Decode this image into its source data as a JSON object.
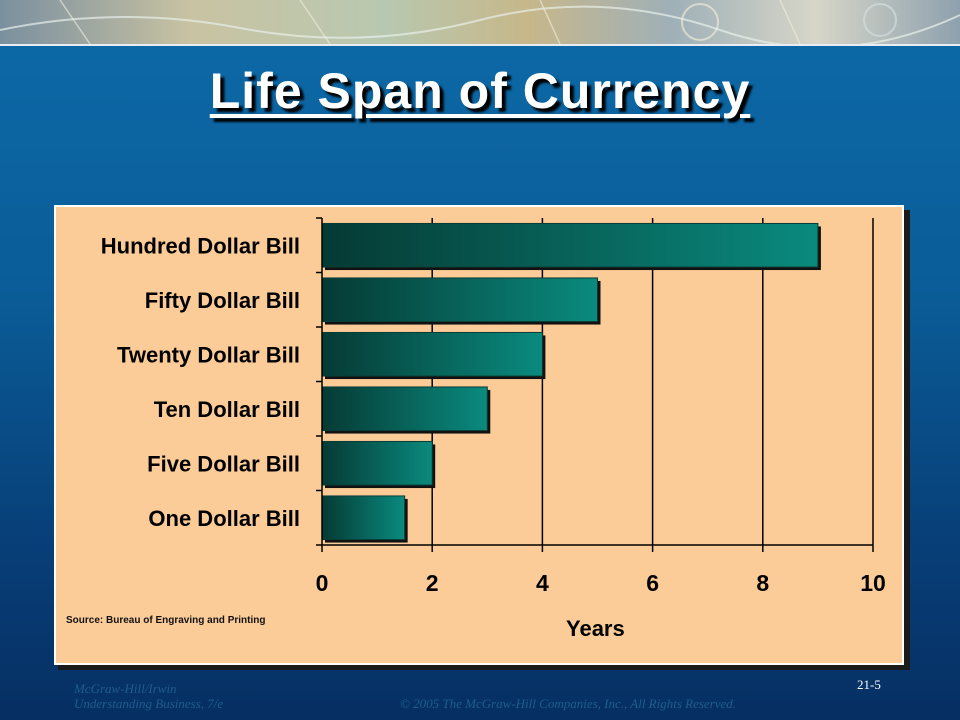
{
  "slide": {
    "title": "Life Span of Currency",
    "footer_publisher": "McGraw-Hill/Irwin",
    "footer_book": "Understanding Business, 7/e",
    "footer_copyright": "© 2005 The McGraw-Hill Companies, Inc., All Rights Reserved.",
    "slide_number": "21-5"
  },
  "chart_data": {
    "type": "bar",
    "orientation": "horizontal",
    "categories": [
      "Hundred Dollar Bill",
      "Fifty Dollar Bill",
      "Twenty Dollar Bill",
      "Ten Dollar Bill",
      "Five Dollar Bill",
      "One Dollar Bill"
    ],
    "values": [
      9,
      5,
      4,
      3,
      2,
      1.5
    ],
    "xlabel": "Years",
    "xlim": [
      0,
      10
    ],
    "xticks": [
      "0",
      "2",
      "4",
      "6",
      "8",
      "10"
    ],
    "source": "Source: Bureau of Engraving and Printing",
    "grid": "vertical",
    "colors": {
      "bar_dark": "#053a34",
      "bar_light": "#0a8a7e",
      "background": "#fccc98"
    }
  }
}
